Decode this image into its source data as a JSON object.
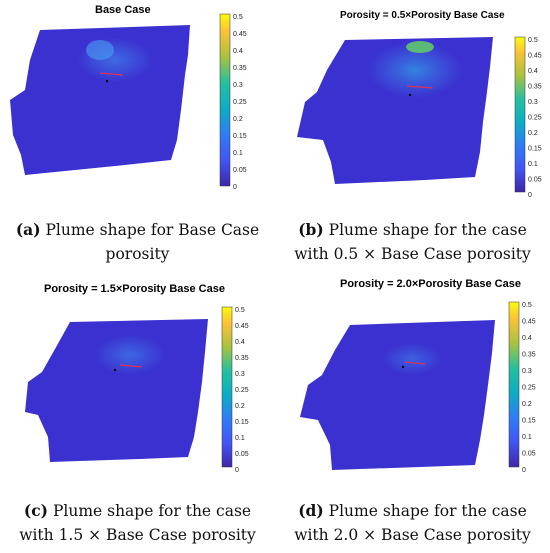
{
  "colorbar": {
    "ticks": [
      "0.5",
      "0.45",
      "0.4",
      "0.35",
      "0.3",
      "0.25",
      "0.2",
      "0.15",
      "0.1",
      "0.05",
      "0"
    ],
    "colors": [
      "#f9fb0e",
      "#fcc236",
      "#dfb82e",
      "#a9c23f",
      "#5fc86b",
      "#25c0a0",
      "#0cadc4",
      "#1997e0",
      "#2f7cf5",
      "#4255f4",
      "#3e26a8"
    ]
  },
  "plume_color": "#3b31d0",
  "panels": [
    {
      "title": "Base Case",
      "caption_label": "(a)",
      "caption_line1": "Plume shape for Base Case",
      "caption_line2": "porosity"
    },
    {
      "title": "Porosity = 0.5×Porosity Base Case",
      "caption_label": "(b)",
      "caption_line1": "Plume shape for the case",
      "caption_line2": "with 0.5 × Base Case porosity"
    },
    {
      "title": "Porosity = 1.5×Porosity Base Case",
      "caption_label": "(c)",
      "caption_line1": "Plume shape for the case",
      "caption_line2": "with 1.5 × Base Case porosity"
    },
    {
      "title": "Porosity = 2.0×Porosity Base Case",
      "caption_label": "(d)",
      "caption_line1": "Plume shape for the case",
      "caption_line2": "with 2.0 × Base Case porosity"
    }
  ]
}
